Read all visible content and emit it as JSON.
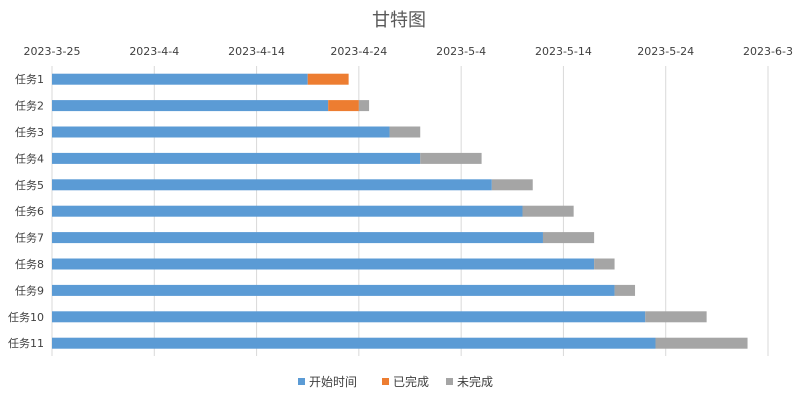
{
  "chart_data": {
    "type": "bar",
    "orientation": "horizontal",
    "stacked": true,
    "title": "甘特图",
    "categories": [
      "任务1",
      "任务2",
      "任务3",
      "任务4",
      "任务5",
      "任务6",
      "任务7",
      "任务8",
      "任务9",
      "任务10",
      "任务11"
    ],
    "x_ticks": [
      "2023-3-25",
      "2023-4-4",
      "2023-4-14",
      "2023-4-24",
      "2023-5-4",
      "2023-5-14",
      "2023-5-24",
      "2023-6-3"
    ],
    "xlim": [
      "2023-03-25",
      "2023-06-03"
    ],
    "x_axis_position": "top",
    "grid": true,
    "legend_position": "bottom",
    "series": [
      {
        "name": "开始时间",
        "color": "#5b9bd5",
        "values": [
          "2023-04-19",
          "2023-04-21",
          "2023-04-27",
          "2023-04-30",
          "2023-05-07",
          "2023-05-10",
          "2023-05-12",
          "2023-05-17",
          "2023-05-19",
          "2023-05-22",
          "2023-05-23"
        ]
      },
      {
        "name": "已完成",
        "color": "#ed7d31",
        "values_days": [
          4,
          3,
          0,
          0,
          0,
          0,
          0,
          0,
          0,
          0,
          0
        ]
      },
      {
        "name": "未完成",
        "color": "#a5a5a5",
        "values_days": [
          0,
          1,
          3,
          6,
          4,
          5,
          5,
          2,
          2,
          6,
          9
        ]
      }
    ]
  }
}
